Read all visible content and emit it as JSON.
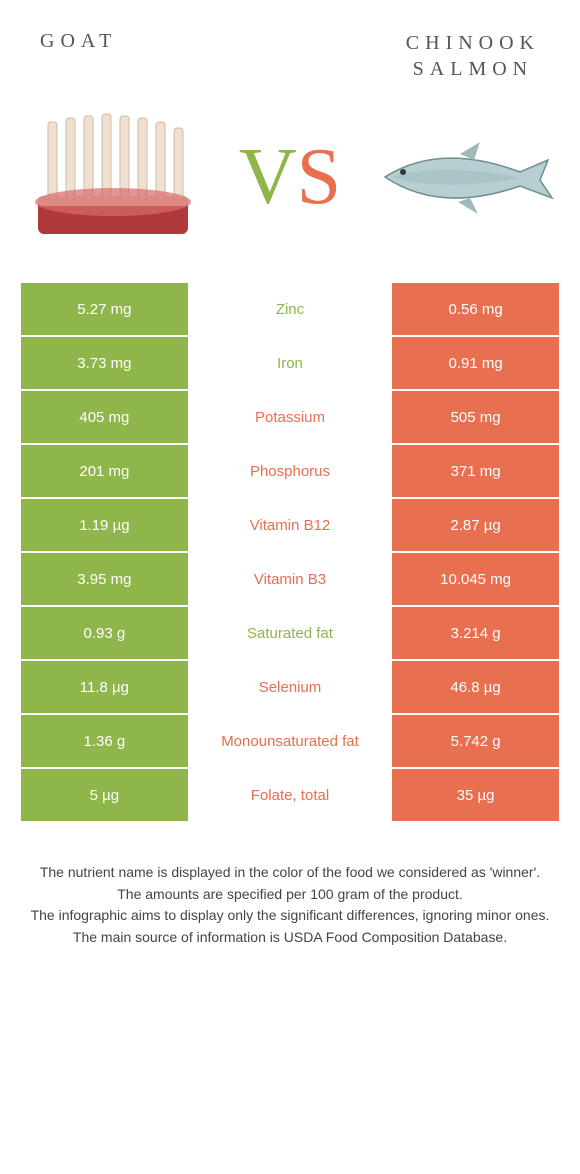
{
  "header": {
    "left": "GOAT",
    "right_line1": "CHINOOK",
    "right_line2": "SALMON"
  },
  "colors": {
    "goat": "#8fb64a",
    "salmon": "#e86f4f"
  },
  "rows": [
    {
      "left": "5.27 mg",
      "mid": "Zinc",
      "winner": "goat",
      "right": "0.56 mg"
    },
    {
      "left": "3.73 mg",
      "mid": "Iron",
      "winner": "goat",
      "right": "0.91 mg"
    },
    {
      "left": "405 mg",
      "mid": "Potassium",
      "winner": "salmon",
      "right": "505 mg"
    },
    {
      "left": "201 mg",
      "mid": "Phosphorus",
      "winner": "salmon",
      "right": "371 mg"
    },
    {
      "left": "1.19 µg",
      "mid": "Vitamin B12",
      "winner": "salmon",
      "right": "2.87 µg"
    },
    {
      "left": "3.95 mg",
      "mid": "Vitamin B3",
      "winner": "salmon",
      "right": "10.045 mg"
    },
    {
      "left": "0.93 g",
      "mid": "Saturated fat",
      "winner": "goat",
      "right": "3.214 g"
    },
    {
      "left": "11.8 µg",
      "mid": "Selenium",
      "winner": "salmon",
      "right": "46.8 µg"
    },
    {
      "left": "1.36 g",
      "mid": "Monounsaturated fat",
      "winner": "salmon",
      "right": "5.742 g"
    },
    {
      "left": "5 µg",
      "mid": "Folate, total",
      "winner": "salmon",
      "right": "35 µg"
    }
  ],
  "footer": {
    "line1": "The nutrient name is displayed in the color of the food we considered as 'winner'.",
    "line2": "The amounts are specified per 100 gram of the product.",
    "line3": "The infographic aims to display only the significant differences, ignoring minor ones.",
    "line4": "The main source of information is USDA Food Composition Database."
  }
}
